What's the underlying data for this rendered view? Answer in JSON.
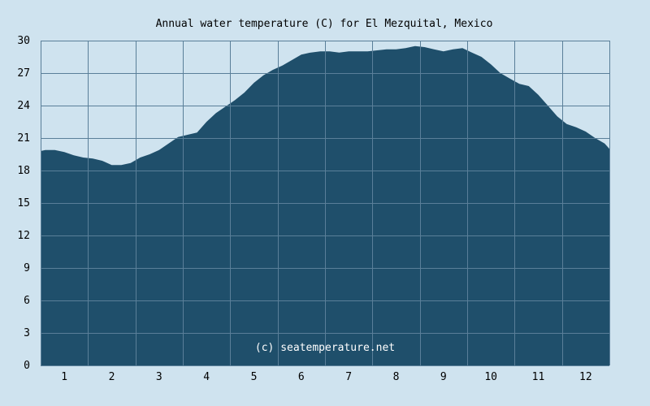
{
  "chart_data": {
    "type": "area",
    "title": "Annual water temperature (C) for El Mezquital, Mexico",
    "credit": "(c) seatemperature.net",
    "xlabel": "",
    "ylabel": "",
    "x_ticks": [
      "1",
      "2",
      "3",
      "4",
      "5",
      "6",
      "7",
      "8",
      "9",
      "10",
      "11",
      "12"
    ],
    "y_ticks": [
      "0",
      "3",
      "6",
      "9",
      "12",
      "15",
      "18",
      "21",
      "24",
      "27",
      "30"
    ],
    "xlim": [
      0.5,
      12.5
    ],
    "ylim": [
      0,
      30
    ],
    "grid": true,
    "colors": {
      "background": "#cfe3ef",
      "fill": "#1f4f6b",
      "grid": "#5a7f99",
      "credit_text": "#ffffff"
    },
    "series": [
      {
        "x": [
          0.5,
          0.6,
          0.8,
          1.0,
          1.2,
          1.4,
          1.6,
          1.8,
          2.0,
          2.2,
          2.4,
          2.6,
          2.8,
          3.0,
          3.2,
          3.4,
          3.6,
          3.8,
          4.0,
          4.2,
          4.4,
          4.6,
          4.8,
          5.0,
          5.2,
          5.4,
          5.6,
          5.8,
          6.0,
          6.2,
          6.4,
          6.6,
          6.8,
          7.0,
          7.2,
          7.4,
          7.6,
          7.8,
          8.0,
          8.2,
          8.4,
          8.6,
          8.8,
          9.0,
          9.2,
          9.4,
          9.6,
          9.8,
          10.0,
          10.2,
          10.4,
          10.6,
          10.8,
          11.0,
          11.2,
          11.4,
          11.6,
          11.8,
          12.0,
          12.2,
          12.4,
          12.5
        ],
        "values": [
          19.8,
          19.9,
          19.9,
          19.7,
          19.4,
          19.2,
          19.1,
          18.9,
          18.5,
          18.5,
          18.7,
          19.2,
          19.5,
          19.9,
          20.5,
          21.1,
          21.3,
          21.5,
          22.5,
          23.3,
          23.9,
          24.5,
          25.2,
          26.1,
          26.8,
          27.3,
          27.7,
          28.2,
          28.7,
          28.9,
          29.0,
          29.0,
          28.9,
          29.0,
          29.0,
          29.0,
          29.1,
          29.2,
          29.2,
          29.3,
          29.5,
          29.4,
          29.2,
          29.0,
          29.2,
          29.3,
          28.9,
          28.5,
          27.8,
          27.0,
          26.5,
          26.0,
          25.8,
          25.0,
          24.0,
          23.0,
          22.3,
          22.0,
          21.6,
          21.0,
          20.5,
          20.0
        ]
      }
    ]
  }
}
